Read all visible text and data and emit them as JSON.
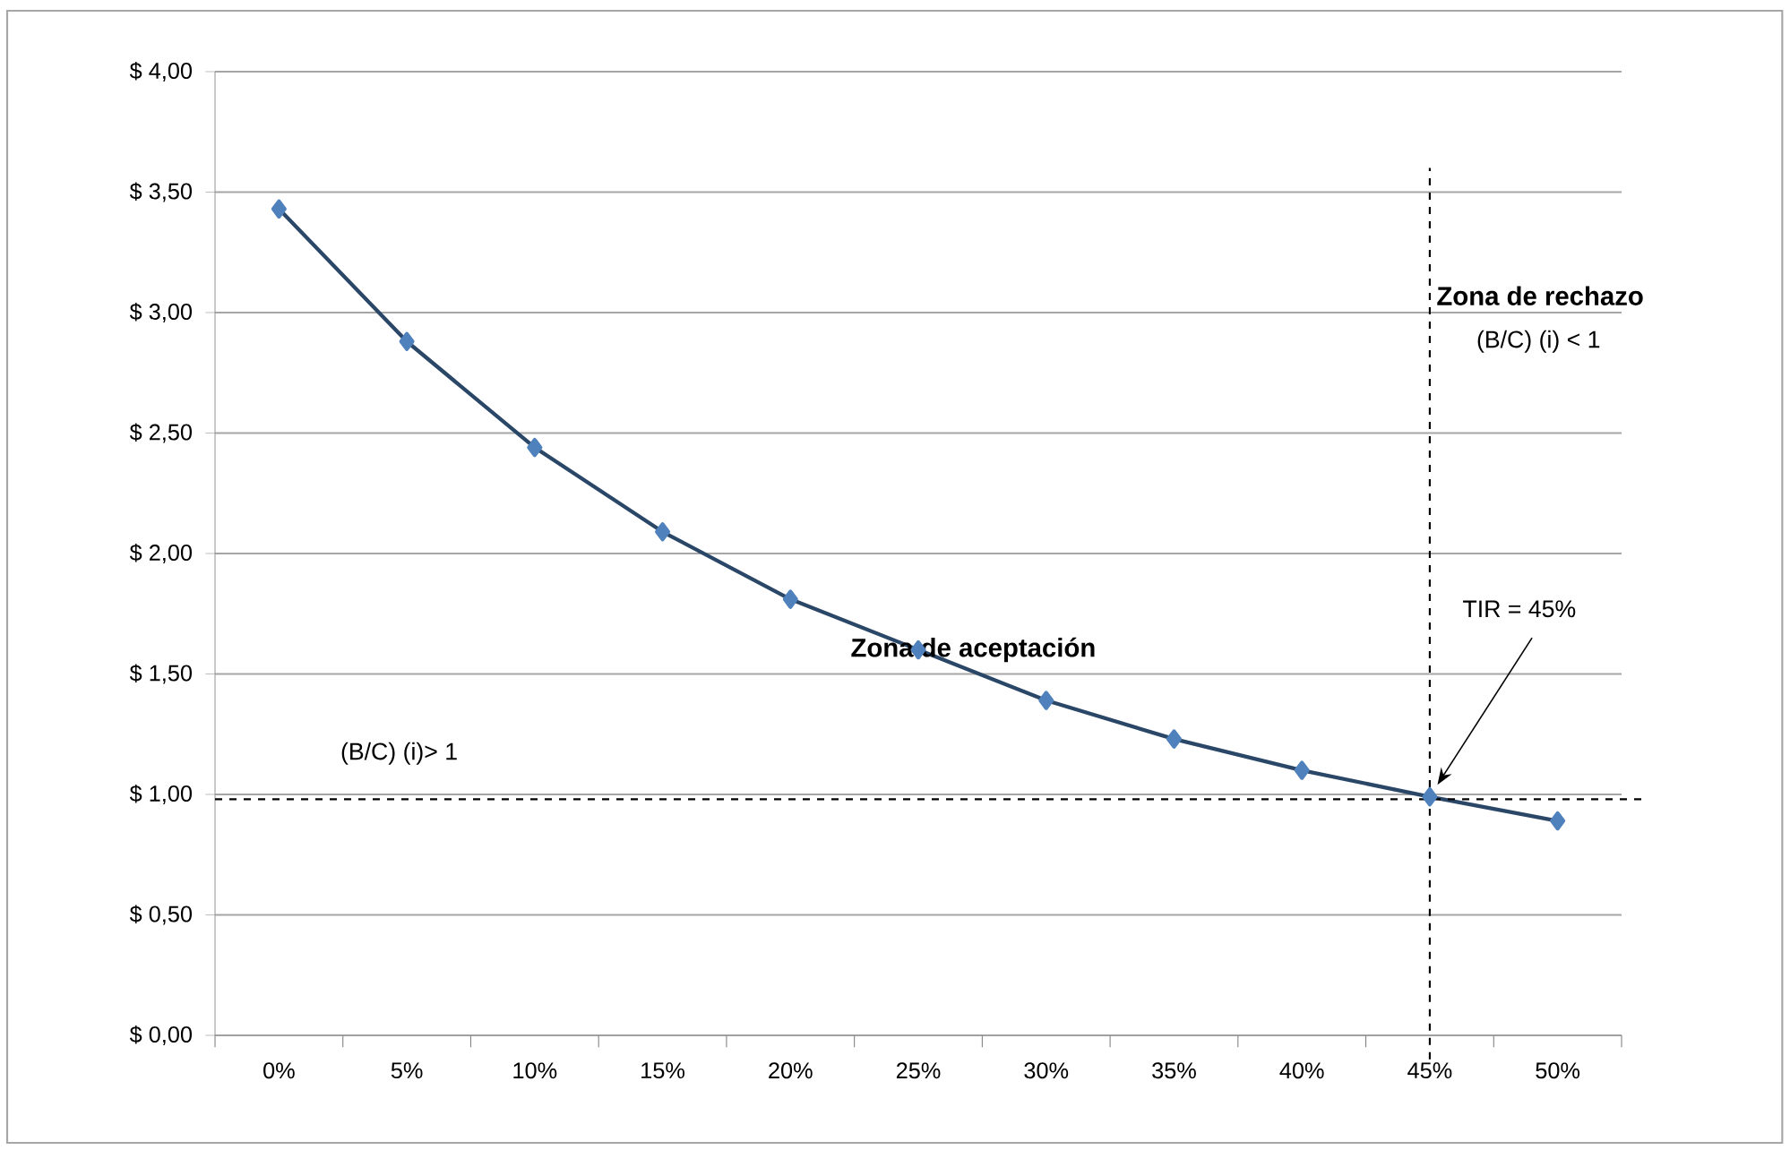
{
  "chart_data": {
    "type": "line",
    "categories": [
      "0%",
      "5%",
      "10%",
      "15%",
      "20%",
      "25%",
      "30%",
      "35%",
      "40%",
      "45%",
      "50%"
    ],
    "series": [
      {
        "color": "#4f81bd",
        "values": [
          3.43,
          2.88,
          2.44,
          2.09,
          1.81,
          1.6,
          1.39,
          1.23,
          1.1,
          0.99,
          0.89
        ]
      }
    ],
    "ylim": [
      0,
      4
    ],
    "yticks": [
      {
        "value": 0,
        "label": "$ 0,00"
      },
      {
        "value": 0.5,
        "label": "$ 0,50"
      },
      {
        "value": 1,
        "label": "$ 1,00"
      },
      {
        "value": 1.5,
        "label": "$ 1,50"
      },
      {
        "value": 2,
        "label": "$ 2,00"
      },
      {
        "value": 2.5,
        "label": "$ 2,50"
      },
      {
        "value": 3,
        "label": "$ 3,00"
      },
      {
        "value": 3.5,
        "label": "$ 3,50"
      },
      {
        "value": 4,
        "label": "$ 4,00"
      }
    ],
    "grid": "y",
    "marker": "diamond",
    "line_style": "solid",
    "ref_lines": [
      {
        "axis": "y",
        "value": 0.98,
        "line_style": "dashed"
      },
      {
        "axis": "x",
        "value": "45%",
        "line_style": "dashed"
      }
    ],
    "annotations": [
      "Zona de rechazo",
      "(B/C) (i) < 1",
      "Zona de aceptación",
      "(B/C) (i)> 1",
      "TIR = 45%"
    ]
  }
}
